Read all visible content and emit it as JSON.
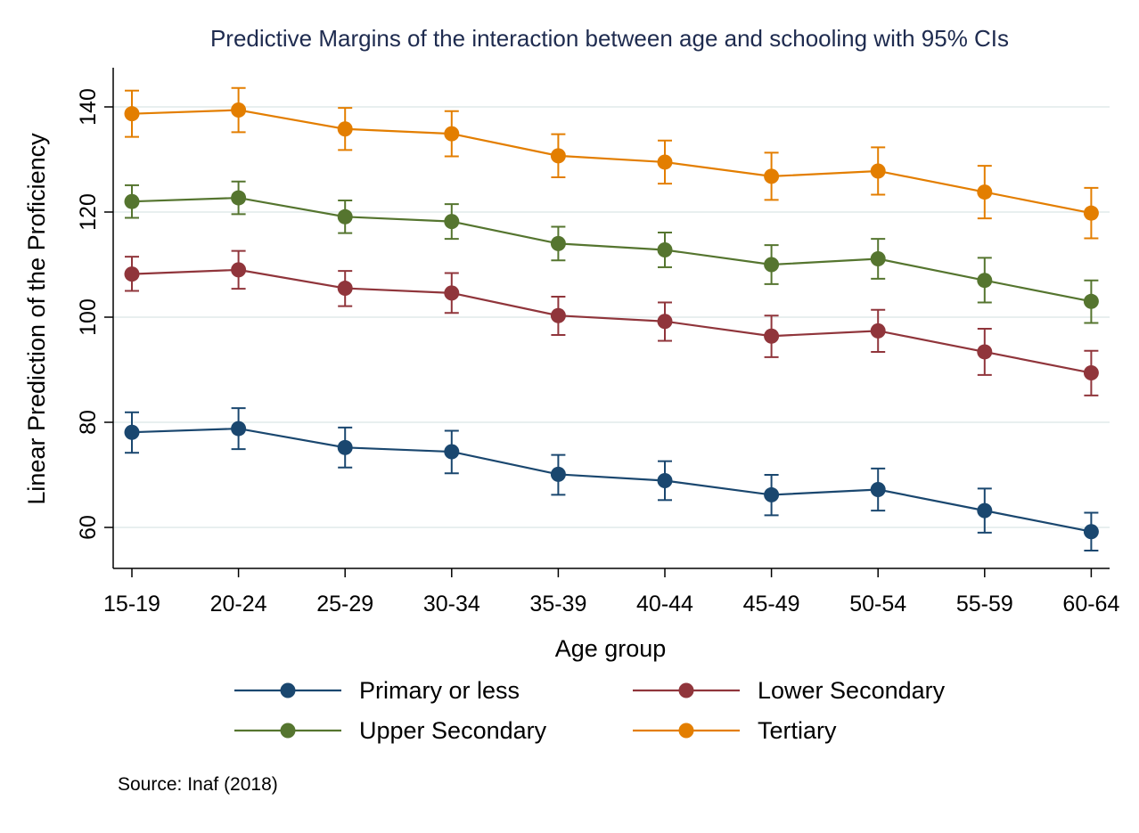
{
  "chart_data": {
    "type": "line",
    "title": "Predictive Margins of the interaction between age and schooling with 95% CIs",
    "xlabel": "Age group",
    "ylabel": "Linear Prediction of the Proficiency",
    "categories": [
      "15-19",
      "20-24",
      "25-29",
      "30-34",
      "35-39",
      "40-44",
      "45-49",
      "50-54",
      "55-59",
      "60-64"
    ],
    "ylim": [
      52,
      147
    ],
    "yticks": [
      60,
      80,
      100,
      120,
      140
    ],
    "grid": true,
    "legend_position": "bottom",
    "note": "Source: Inaf (2018)",
    "series": [
      {
        "name": "Primary or less",
        "color": "#1a476f",
        "values": [
          78.1,
          78.8,
          75.2,
          74.4,
          70.1,
          68.9,
          66.2,
          67.2,
          63.2,
          59.2
        ],
        "ci_low": [
          74.2,
          74.9,
          71.4,
          70.3,
          66.2,
          65.2,
          62.3,
          63.2,
          59.0,
          55.6
        ],
        "ci_high": [
          81.9,
          82.7,
          79.0,
          78.4,
          73.8,
          72.6,
          70.0,
          71.2,
          67.4,
          62.8
        ]
      },
      {
        "name": "Lower Secondary",
        "color": "#90353b",
        "values": [
          108.2,
          109.0,
          105.5,
          104.6,
          100.3,
          99.2,
          96.4,
          97.4,
          93.4,
          89.4
        ],
        "ci_low": [
          105.0,
          105.4,
          102.1,
          100.8,
          96.6,
          95.5,
          92.4,
          93.4,
          89.0,
          85.1
        ],
        "ci_high": [
          111.5,
          112.6,
          108.8,
          108.4,
          103.9,
          102.8,
          100.3,
          101.4,
          97.8,
          93.6
        ]
      },
      {
        "name": "Upper Secondary",
        "color": "#55752f",
        "values": [
          122.0,
          122.7,
          119.1,
          118.2,
          114.0,
          112.8,
          110.0,
          111.1,
          107.0,
          103.0
        ],
        "ci_low": [
          118.9,
          119.6,
          116.0,
          114.9,
          110.8,
          109.5,
          106.3,
          107.3,
          102.8,
          98.9
        ],
        "ci_high": [
          125.1,
          125.8,
          122.2,
          121.5,
          117.2,
          116.1,
          113.7,
          114.9,
          111.3,
          107.0
        ]
      },
      {
        "name": "Tertiary",
        "color": "#e37e00",
        "values": [
          138.7,
          139.4,
          135.8,
          134.9,
          130.7,
          129.5,
          126.8,
          127.8,
          123.8,
          119.8
        ],
        "ci_low": [
          134.3,
          135.2,
          131.8,
          130.6,
          126.6,
          125.4,
          122.3,
          123.3,
          118.8,
          115.0
        ],
        "ci_high": [
          143.1,
          143.6,
          139.8,
          139.2,
          134.8,
          133.6,
          131.3,
          132.3,
          128.8,
          124.6
        ]
      }
    ]
  }
}
